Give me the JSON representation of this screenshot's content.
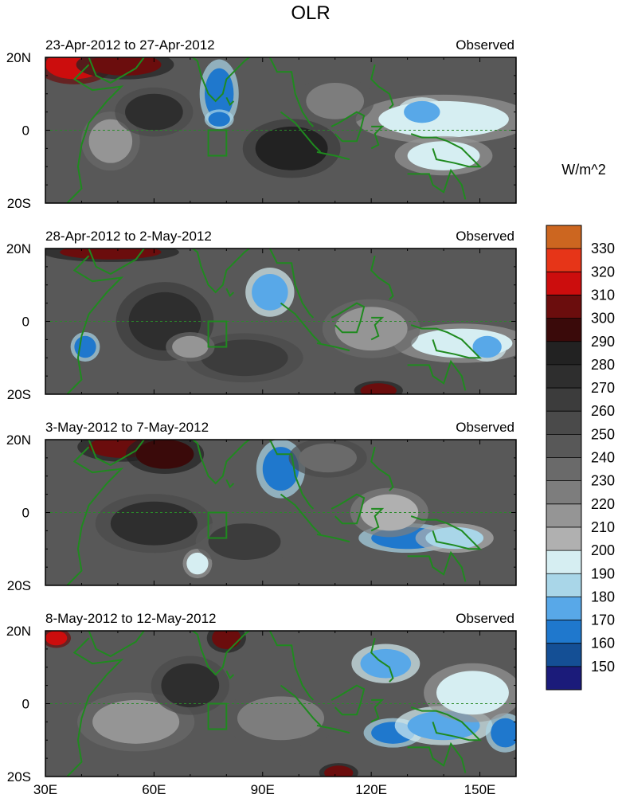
{
  "title": "OLR",
  "colorbar": {
    "units": "W/m^2",
    "levels": [
      150,
      160,
      170,
      180,
      190,
      200,
      210,
      220,
      230,
      240,
      250,
      260,
      270,
      280,
      290,
      300,
      310,
      320,
      330
    ],
    "colors": [
      "#1b1b7a",
      "#144f95",
      "#1f78cd",
      "#58a8e8",
      "#a9d6e8",
      "#d6eef2",
      "#b0b0b0",
      "#959595",
      "#7d7d7d",
      "#6a6a6a",
      "#585858",
      "#4a4a4a",
      "#3c3c3c",
      "#2e2e2e",
      "#222222",
      "#3a0a0a",
      "#6b0d0d",
      "#cc0d0d",
      "#e63518",
      "#cc6620"
    ]
  },
  "chart_data": {
    "type": "heatmap",
    "variable": "OLR",
    "units": "W/m^2",
    "xlim": [
      30,
      160
    ],
    "ylim": [
      -20,
      20
    ],
    "x_ticks": [
      "30E",
      "60E",
      "90E",
      "120E",
      "150E"
    ],
    "y_ticks": [
      "20N",
      "0",
      "20S"
    ],
    "panels": [
      {
        "period": "23-Apr-2012 to 27-Apr-2012",
        "label": "Observed",
        "features": [
          {
            "lon": 78,
            "lat": 10,
            "rx": 4,
            "ry": 7,
            "value": 170
          },
          {
            "lon": 78,
            "lat": 3,
            "rx": 3,
            "ry": 2,
            "value": 165
          },
          {
            "lon": 140,
            "lat": 3,
            "rx": 18,
            "ry": 5,
            "value": 195
          },
          {
            "lon": 134,
            "lat": 5,
            "rx": 5,
            "ry": 3,
            "value": 175
          },
          {
            "lon": 140,
            "lat": -7,
            "rx": 10,
            "ry": 4,
            "value": 200
          },
          {
            "lon": 38,
            "lat": 18,
            "rx": 8,
            "ry": 4,
            "value": 318
          },
          {
            "lon": 52,
            "lat": 18,
            "rx": 10,
            "ry": 3,
            "value": 302
          },
          {
            "lon": 98,
            "lat": -5,
            "rx": 10,
            "ry": 6,
            "value": 285
          },
          {
            "lon": 48,
            "lat": -3,
            "rx": 6,
            "ry": 6,
            "value": 215
          },
          {
            "lon": 60,
            "lat": 5,
            "rx": 8,
            "ry": 5,
            "value": 275
          },
          {
            "lon": 110,
            "lat": 8,
            "rx": 8,
            "ry": 5,
            "value": 230
          }
        ]
      },
      {
        "period": "28-Apr-2012 to 2-May-2012",
        "label": "Observed",
        "features": [
          {
            "lon": 41,
            "lat": -7,
            "rx": 3,
            "ry": 3,
            "value": 165
          },
          {
            "lon": 92,
            "lat": 8,
            "rx": 5,
            "ry": 5,
            "value": 180
          },
          {
            "lon": 145,
            "lat": -6,
            "rx": 14,
            "ry": 4,
            "value": 195
          },
          {
            "lon": 152,
            "lat": -7,
            "rx": 4,
            "ry": 3,
            "value": 180
          },
          {
            "lon": 120,
            "lat": -2,
            "rx": 10,
            "ry": 6,
            "value": 215
          },
          {
            "lon": 48,
            "lat": 19,
            "rx": 14,
            "ry": 2,
            "value": 303
          },
          {
            "lon": 122,
            "lat": -19,
            "rx": 5,
            "ry": 2,
            "value": 305
          },
          {
            "lon": 63,
            "lat": 0,
            "rx": 10,
            "ry": 8,
            "value": 280
          },
          {
            "lon": 85,
            "lat": -10,
            "rx": 12,
            "ry": 5,
            "value": 270
          },
          {
            "lon": 70,
            "lat": -7,
            "rx": 5,
            "ry": 3,
            "value": 215
          }
        ]
      },
      {
        "period": "3-May-2012 to 7-May-2012",
        "label": "Observed",
        "features": [
          {
            "lon": 95,
            "lat": 12,
            "rx": 5,
            "ry": 6,
            "value": 170
          },
          {
            "lon": 130,
            "lat": -7,
            "rx": 10,
            "ry": 3,
            "value": 170
          },
          {
            "lon": 143,
            "lat": -7,
            "rx": 8,
            "ry": 3,
            "value": 190
          },
          {
            "lon": 125,
            "lat": 0,
            "rx": 8,
            "ry": 5,
            "value": 205
          },
          {
            "lon": 51,
            "lat": 18,
            "rx": 9,
            "ry": 3,
            "value": 303
          },
          {
            "lon": 63,
            "lat": 16,
            "rx": 8,
            "ry": 4,
            "value": 300
          },
          {
            "lon": 72,
            "lat": -14,
            "rx": 3,
            "ry": 3,
            "value": 195
          },
          {
            "lon": 60,
            "lat": -3,
            "rx": 12,
            "ry": 6,
            "value": 275
          },
          {
            "lon": 85,
            "lat": -8,
            "rx": 10,
            "ry": 5,
            "value": 265
          },
          {
            "lon": 108,
            "lat": 15,
            "rx": 8,
            "ry": 4,
            "value": 240
          }
        ]
      },
      {
        "period": "8-May-2012 to 12-May-2012",
        "label": "Observed",
        "features": [
          {
            "lon": 124,
            "lat": 11,
            "rx": 7,
            "ry": 4,
            "value": 175
          },
          {
            "lon": 126,
            "lat": -8,
            "rx": 6,
            "ry": 3,
            "value": 165
          },
          {
            "lon": 140,
            "lat": -6,
            "rx": 10,
            "ry": 4,
            "value": 180
          },
          {
            "lon": 157,
            "lat": -8,
            "rx": 4,
            "ry": 4,
            "value": 165
          },
          {
            "lon": 148,
            "lat": 3,
            "rx": 10,
            "ry": 6,
            "value": 195
          },
          {
            "lon": 33,
            "lat": 18,
            "rx": 3,
            "ry": 2,
            "value": 318
          },
          {
            "lon": 80,
            "lat": 18,
            "rx": 4,
            "ry": 3,
            "value": 303
          },
          {
            "lon": 111,
            "lat": -19,
            "rx": 4,
            "ry": 2,
            "value": 305
          },
          {
            "lon": 55,
            "lat": -5,
            "rx": 12,
            "ry": 6,
            "value": 220
          },
          {
            "lon": 95,
            "lat": -4,
            "rx": 12,
            "ry": 6,
            "value": 230
          },
          {
            "lon": 70,
            "lat": 5,
            "rx": 8,
            "ry": 6,
            "value": 275
          }
        ]
      }
    ]
  }
}
